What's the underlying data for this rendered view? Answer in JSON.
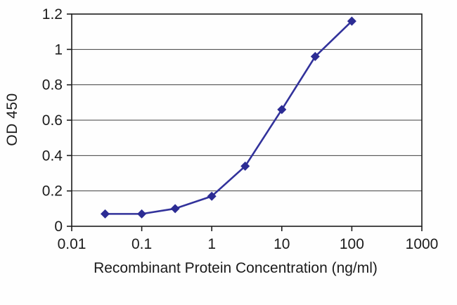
{
  "chart_data": {
    "type": "line",
    "title": "",
    "xlabel": "Recombinant Protein Concentration (ng/ml)",
    "ylabel": "OD 450",
    "x_scale": "log",
    "xlim": [
      0.01,
      1000
    ],
    "ylim": [
      0,
      1.2
    ],
    "x": [
      0.03,
      0.1,
      0.3,
      1,
      3,
      10,
      30,
      100
    ],
    "y": [
      0.07,
      0.07,
      0.1,
      0.17,
      0.34,
      0.66,
      0.96,
      1.16
    ],
    "x_ticks": [
      "0.01",
      "0.1",
      "1",
      "10",
      "100",
      "1000"
    ],
    "y_ticks": [
      "0",
      "0.2",
      "0.4",
      "0.6",
      "0.8",
      "1",
      "1.2"
    ],
    "grid": "horizontal",
    "legend": "none",
    "marker": "diamond",
    "line_color": "#32329b",
    "marker_color": "#2c2c94",
    "axis_color": "#1c1c1c",
    "grid_color": "#3f3f3f"
  }
}
